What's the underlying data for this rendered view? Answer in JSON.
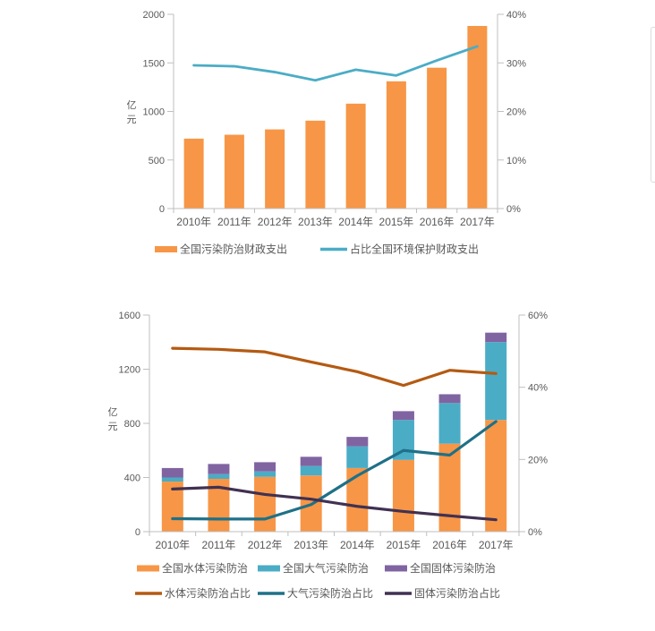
{
  "theme": {
    "background": "#ffffff",
    "axis_color": "#bfbfbf",
    "text_color": "#595959",
    "fragment_border_color": "#dcdcdc",
    "accent_orange": "#f79646",
    "accent_teal": "#4bacc6",
    "accent_purple": "#8064a2",
    "accent_dark_orange": "#b45a12",
    "accent_dark_teal": "#1f7088",
    "accent_dark_purple": "#403152"
  },
  "chart_data": [
    {
      "type": "bar",
      "subtype": "bar+line combo",
      "title": "",
      "categories": [
        "2010年",
        "2011年",
        "2012年",
        "2013年",
        "2014年",
        "2015年",
        "2016年",
        "2017年"
      ],
      "bar_series": [
        {
          "id": "pollution-control-expenditure",
          "name": "全国污染防治财政支出",
          "color": "#f79646",
          "axis": "left",
          "values": [
            720,
            760,
            815,
            905,
            1080,
            1310,
            1450,
            1880
          ]
        }
      ],
      "line_series": [
        {
          "id": "share-of-environmental-protection-expenditure",
          "name": "占比全国环境保护财政支出",
          "color": "#4bacc6",
          "axis": "right",
          "values": [
            29.5,
            29.3,
            28.1,
            26.4,
            28.6,
            27.4,
            30.5,
            33.4
          ]
        }
      ],
      "ylabel_left": "亿元",
      "left_axis": {
        "min": 0,
        "max": 2000,
        "tick_step": 500,
        "format": "number"
      },
      "right_axis": {
        "min": 0,
        "max": 40,
        "tick_step": 10,
        "format": "percent"
      },
      "grid": false,
      "legend_position": "bottom"
    },
    {
      "type": "bar",
      "subtype": "stacked-bar+line combo",
      "title": "",
      "categories": [
        "2010年",
        "2011年",
        "2012年",
        "2013年",
        "2014年",
        "2015年",
        "2016年",
        "2017年"
      ],
      "stacked": true,
      "bar_series": [
        {
          "id": "water-pollution-control",
          "name": "全国水体污染防治",
          "color": "#f79646",
          "axis": "left",
          "values": [
            370,
            390,
            405,
            415,
            470,
            530,
            650,
            825
          ]
        },
        {
          "id": "air-pollution-control",
          "name": "全国大气污染防治",
          "color": "#4bacc6",
          "axis": "left",
          "values": [
            30,
            35,
            40,
            70,
            160,
            295,
            300,
            575
          ]
        },
        {
          "id": "solid-waste-pollution-control",
          "name": "全国固体污染防治",
          "color": "#8064a2",
          "axis": "left",
          "values": [
            70,
            75,
            68,
            68,
            70,
            65,
            65,
            70
          ]
        }
      ],
      "line_series": [
        {
          "id": "water-pollution-control-share",
          "name": "水体污染防治占比",
          "color": "#b45a12",
          "axis": "right",
          "values": [
            50.8,
            50.5,
            49.8,
            47.0,
            44.3,
            40.5,
            44.7,
            43.8
          ]
        },
        {
          "id": "air-pollution-control-share",
          "name": "大气污染防治占比",
          "color": "#1f7088",
          "axis": "right",
          "values": [
            3.6,
            3.5,
            3.5,
            7.5,
            15.5,
            22.5,
            21.2,
            30.5
          ]
        },
        {
          "id": "solid-waste-pollution-control-share",
          "name": "固体污染防治占比",
          "color": "#403152",
          "axis": "right",
          "values": [
            11.8,
            12.3,
            10.3,
            9.0,
            7.0,
            5.6,
            4.4,
            3.3
          ]
        }
      ],
      "ylabel_left": "亿元",
      "left_axis": {
        "min": 0,
        "max": 1600,
        "tick_step": 400,
        "format": "number"
      },
      "right_axis": {
        "min": 0,
        "max": 60,
        "tick_step": 20,
        "format": "percent"
      },
      "grid": false,
      "legend_position": "bottom"
    }
  ]
}
